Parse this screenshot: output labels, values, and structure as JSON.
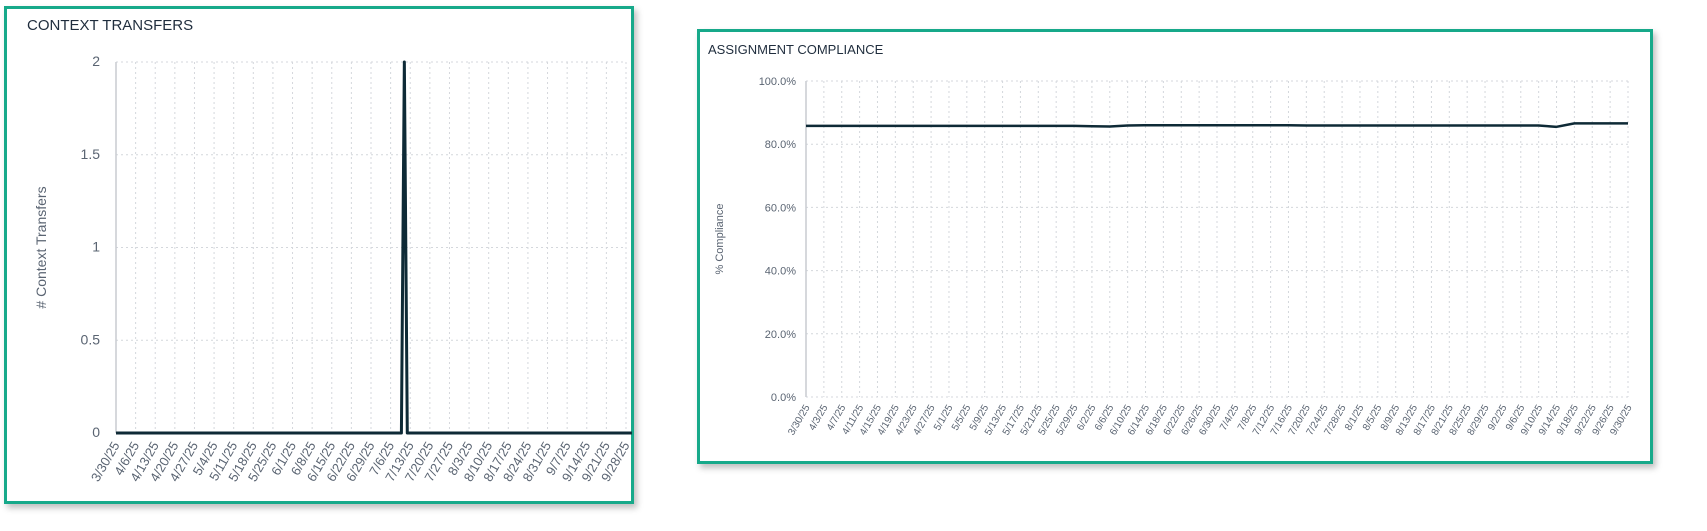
{
  "chart_data": [
    {
      "type": "line",
      "title": "CONTEXT TRANSFERS",
      "xlabel": "",
      "ylabel": "# Context Transfers",
      "ylim": [
        0,
        2
      ],
      "yticks": [
        "0",
        "0.5",
        "1",
        "1.5",
        "2"
      ],
      "grid": true,
      "legend": null,
      "categories": [
        "3/30/25",
        "4/6/25",
        "4/13/25",
        "4/20/25",
        "4/27/25",
        "5/4/25",
        "5/11/25",
        "5/18/25",
        "5/25/25",
        "6/1/25",
        "6/8/25",
        "6/15/25",
        "6/22/25",
        "6/29/25",
        "7/6/25",
        "7/13/25",
        "7/20/25",
        "7/27/25",
        "8/3/25",
        "8/10/25",
        "8/17/25",
        "8/24/25",
        "8/31/25",
        "9/7/25",
        "9/14/25",
        "9/21/25",
        "9/28/25"
      ],
      "series": [
        {
          "name": "# Context Transfers",
          "color": "#0e2a36",
          "points": [
            {
              "x": 0,
              "y": 0
            },
            {
              "x": 14.55,
              "y": 0
            },
            {
              "x": 14.7,
              "y": 2
            },
            {
              "x": 14.85,
              "y": 0
            },
            {
              "x": 26.3,
              "y": 0
            }
          ],
          "note": "single spike of 2 around 7/9/25, otherwise 0"
        }
      ]
    },
    {
      "type": "line",
      "title": "ASSIGNMENT COMPLIANCE",
      "xlabel": "",
      "ylabel": "% Compliance",
      "ylim": [
        0,
        100
      ],
      "yticks": [
        "0.0%",
        "20.0%",
        "40.0%",
        "60.0%",
        "80.0%",
        "100.0%"
      ],
      "grid": true,
      "legend": null,
      "categories": [
        "3/30/25",
        "4/3/25",
        "4/7/25",
        "4/11/25",
        "4/15/25",
        "4/19/25",
        "4/23/25",
        "4/27/25",
        "5/1/25",
        "5/5/25",
        "5/9/25",
        "5/13/25",
        "5/17/25",
        "5/21/25",
        "5/25/25",
        "5/29/25",
        "6/2/25",
        "6/6/25",
        "6/10/25",
        "6/14/25",
        "6/18/25",
        "6/22/25",
        "6/26/25",
        "6/30/25",
        "7/4/25",
        "7/8/25",
        "7/12/25",
        "7/16/25",
        "7/20/25",
        "7/24/25",
        "7/28/25",
        "8/1/25",
        "8/5/25",
        "8/9/25",
        "8/13/25",
        "8/17/25",
        "8/21/25",
        "8/25/25",
        "8/29/25",
        "9/2/25",
        "9/6/25",
        "9/10/25",
        "9/14/25",
        "9/18/25",
        "9/22/25",
        "9/26/25",
        "9/30/25"
      ],
      "series": [
        {
          "name": "% Compliance",
          "color": "#0e2a36",
          "values": [
            85.8,
            85.8,
            85.8,
            85.8,
            85.8,
            85.8,
            85.8,
            85.8,
            85.8,
            85.8,
            85.8,
            85.8,
            85.8,
            85.8,
            85.8,
            85.8,
            85.7,
            85.6,
            85.9,
            86.0,
            86.0,
            86.0,
            86.0,
            86.0,
            86.0,
            86.0,
            86.0,
            86.0,
            85.9,
            85.9,
            85.9,
            85.9,
            85.9,
            85.9,
            85.9,
            85.9,
            85.9,
            85.9,
            85.9,
            85.9,
            85.9,
            85.9,
            85.5,
            86.6,
            86.6,
            86.6,
            86.6
          ]
        }
      ]
    }
  ],
  "left_card": {
    "title": "CONTEXT TRANSFERS"
  },
  "right_card": {
    "title": "ASSIGNMENT COMPLIANCE"
  },
  "colors": {
    "card_border": "#17a98a",
    "line": "#0e2a36",
    "grid": "#d4d7dc",
    "tick_text": "#5a6472"
  }
}
